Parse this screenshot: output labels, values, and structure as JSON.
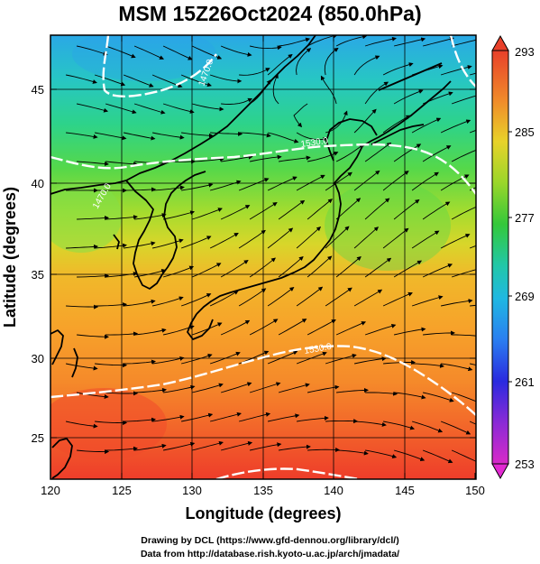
{
  "title": "MSM 15Z26Oct2024 (850.0hPa)",
  "x_axis": {
    "title": "Longitude (degrees)",
    "ticks": [
      "120",
      "125",
      "130",
      "135",
      "140",
      "145",
      "150"
    ],
    "range": [
      120,
      150
    ]
  },
  "y_axis": {
    "title": "Latitude  (degrees)",
    "ticks": [
      "25",
      "30",
      "35",
      "40",
      "45"
    ],
    "range": [
      22.4,
      47.6
    ]
  },
  "colorbar": {
    "labels": [
      "293",
      "285",
      "277",
      "269",
      "261",
      "253"
    ],
    "range": [
      253,
      293
    ]
  },
  "contours": {
    "labels": [
      "1530.0",
      "1470.0",
      "1530.0",
      "1470.0"
    ]
  },
  "credits": {
    "line1": "Drawing by DCL (https://www.gfd-dennou.org/library/dcl/)",
    "line2": "Data from http://database.rish.kyoto-u.ac.jp/arch/jmadata/"
  },
  "colors": {
    "frame": "#000000",
    "contour": "#ffffff",
    "coast": "#000000",
    "wind": "#000000"
  }
}
